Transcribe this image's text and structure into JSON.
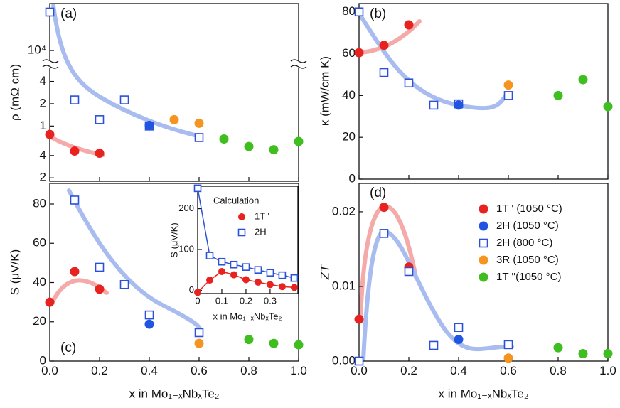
{
  "chart_data": [
    {
      "type": "scatter",
      "label": "(a)",
      "ylabel": "ρ (mΩ cm)",
      "log_y": true,
      "xlim": [
        0,
        1
      ],
      "ylim": [
        0.18,
        43000
      ],
      "ybreak": [
        7,
        6700
      ],
      "xticks": [
        0,
        0.2,
        0.4,
        0.6,
        0.8,
        1
      ],
      "yticks": [
        {
          "value": 0.2,
          "label": "2"
        },
        {
          "value": 0.4,
          "label": "4"
        },
        1,
        {
          "value": 2,
          "label": "2"
        },
        {
          "value": 4,
          "label": "4"
        },
        {
          "value": 10000,
          "label": "10⁴"
        }
      ],
      "series": [
        {
          "color": "#e8221f",
          "marker": "circle",
          "x": [
            0,
            0.1,
            0.2
          ],
          "values": [
            0.77,
            0.46,
            0.43
          ]
        },
        {
          "color": "#2a52d9",
          "marker": "square",
          "x": [
            0,
            0.1,
            0.2,
            0.3,
            0.4,
            0.6
          ],
          "values": [
            33000,
            2.25,
            1.22,
            2.25,
            1.0,
            0.7
          ]
        },
        {
          "color": "#1f55e0",
          "marker": "circle",
          "x": [
            0.4
          ],
          "values": [
            1.02
          ]
        },
        {
          "color": "#f5941e",
          "marker": "circle",
          "x": [
            0.5,
            0.6
          ],
          "values": [
            1.22,
            1.09
          ]
        },
        {
          "color": "#3fbf1f",
          "marker": "circle",
          "x": [
            0.7,
            0.8,
            0.9,
            1
          ],
          "values": [
            0.67,
            0.53,
            0.48,
            0.62
          ]
        }
      ]
    },
    {
      "type": "scatter",
      "label": "(b)",
      "ylabel": "κ (mW/cm K)",
      "xlim": [
        0,
        1
      ],
      "ylim": [
        0,
        84
      ],
      "xticks": [
        0,
        0.2,
        0.4,
        0.6,
        0.8,
        1
      ],
      "yticks": [
        0,
        20,
        40,
        60,
        80
      ],
      "series": [
        {
          "color": "#e8221f",
          "marker": "circle",
          "x": [
            0,
            0.1,
            0.2
          ],
          "values": [
            60.5,
            64,
            73.8
          ]
        },
        {
          "color": "#2a52d9",
          "marker": "square",
          "x": [
            0,
            0.1,
            0.2,
            0.3,
            0.4,
            0.6
          ],
          "values": [
            80,
            51,
            46,
            35.4,
            36,
            40
          ]
        },
        {
          "color": "#1f55e0",
          "marker": "circle",
          "x": [
            0.4
          ],
          "values": [
            35.4
          ]
        },
        {
          "color": "#f5941e",
          "marker": "circle",
          "x": [
            0.6
          ],
          "values": [
            45
          ]
        },
        {
          "color": "#3fbf1f",
          "marker": "circle",
          "x": [
            0.8,
            0.9,
            1
          ],
          "values": [
            40,
            47.6,
            34.7
          ]
        }
      ]
    },
    {
      "type": "scatter",
      "label": "(c)",
      "ylabel": "S (μV/K)",
      "xlabel": "x in Mo₁₋ₓNbₓTe₂",
      "xlim": [
        0,
        1
      ],
      "ylim": [
        0,
        90.5
      ],
      "xticks": [
        {
          "value": 0,
          "label": "0.0"
        },
        0.2,
        0.4,
        0.6,
        0.8,
        {
          "value": 1,
          "label": "1.0"
        }
      ],
      "yticks": [
        0,
        20,
        40,
        60,
        80
      ],
      "series": [
        {
          "color": "#e8221f",
          "marker": "circle",
          "x": [
            0,
            0.1,
            0.2
          ],
          "values": [
            30,
            45.6,
            36.6
          ]
        },
        {
          "color": "#2a52d9",
          "marker": "square",
          "x": [
            0.1,
            0.2,
            0.3,
            0.4,
            0.6
          ],
          "values": [
            82,
            47.8,
            39,
            23.5,
            14.5
          ]
        },
        {
          "color": "#1f55e0",
          "marker": "circle",
          "x": [
            0.4
          ],
          "values": [
            18.8
          ]
        },
        {
          "color": "#f5941e",
          "marker": "circle",
          "x": [
            0.6
          ],
          "values": [
            9
          ]
        },
        {
          "color": "#3fbf1f",
          "marker": "circle",
          "x": [
            0.8,
            0.9,
            1
          ],
          "values": [
            11,
            9,
            8.3
          ]
        }
      ]
    },
    {
      "type": "line",
      "legend_title": "Calculation",
      "ylabel": "S (μV/K)",
      "xlabel": "x in Mo₁₋ₓNbₓTe₂",
      "xlim": [
        0,
        0.415
      ],
      "ylim": [
        -8,
        255
      ],
      "xticks": [
        0,
        0.1,
        0.2,
        0.3
      ],
      "yticks": [
        0,
        100,
        200
      ],
      "series": [
        {
          "name": "1T '",
          "color": "#e8221f",
          "marker": "circle",
          "x": [
            0,
            0.05,
            0.1,
            0.15,
            0.2,
            0.25,
            0.3,
            0.35,
            0.4
          ],
          "values": [
            -5,
            25,
            46,
            38,
            26,
            20,
            14,
            9,
            7
          ]
        },
        {
          "name": "2H",
          "color": "#2a52d9",
          "marker": "square",
          "x": [
            0,
            0.05,
            0.1,
            0.15,
            0.2,
            0.25,
            0.3,
            0.35,
            0.4
          ],
          "values": [
            250,
            85,
            70,
            63,
            57,
            50,
            43,
            37,
            30
          ]
        }
      ]
    },
    {
      "type": "scatter",
      "label": "(d)",
      "ylabel": "ZT",
      "xlabel": "x in Mo₁₋ₓNbₓTe₂",
      "xlim": [
        0,
        1
      ],
      "ylim": [
        0,
        0.0238
      ],
      "xticks": [
        {
          "value": 0,
          "label": "0.0"
        },
        0.2,
        0.4,
        0.6,
        0.8,
        {
          "value": 1,
          "label": "1.0"
        }
      ],
      "yticks": [
        {
          "value": 0,
          "label": "0.00"
        },
        0.01,
        0.02
      ],
      "series": [
        {
          "name": "1T ' (1050 °C)",
          "color": "#e8221f",
          "marker": "circle",
          "x": [
            0,
            0.1,
            0.2
          ],
          "values": [
            0.0056,
            0.0206,
            0.0126
          ]
        },
        {
          "name": "2H  (1050 °C)",
          "color": "#1f55e0",
          "marker": "circle",
          "x": [
            0.4
          ],
          "values": [
            0.0029
          ]
        },
        {
          "name": "2H  (800 °C)",
          "color": "#2a52d9",
          "marker": "square",
          "x": [
            0,
            0.1,
            0.2,
            0.3,
            0.4,
            0.6
          ],
          "values": [
            0,
            0.0171,
            0.012,
            0.0021,
            0.0045,
            0.0022
          ]
        },
        {
          "name": "3R  (1050 °C)",
          "color": "#f5941e",
          "marker": "circle",
          "x": [
            0.6
          ],
          "values": [
            0.0004
          ]
        },
        {
          "name": "1T ''(1050 °C)",
          "color": "#3fbf1f",
          "marker": "circle",
          "x": [
            0.8,
            0.9,
            1
          ],
          "values": [
            0.0018,
            0.001,
            0.001
          ]
        }
      ]
    }
  ]
}
